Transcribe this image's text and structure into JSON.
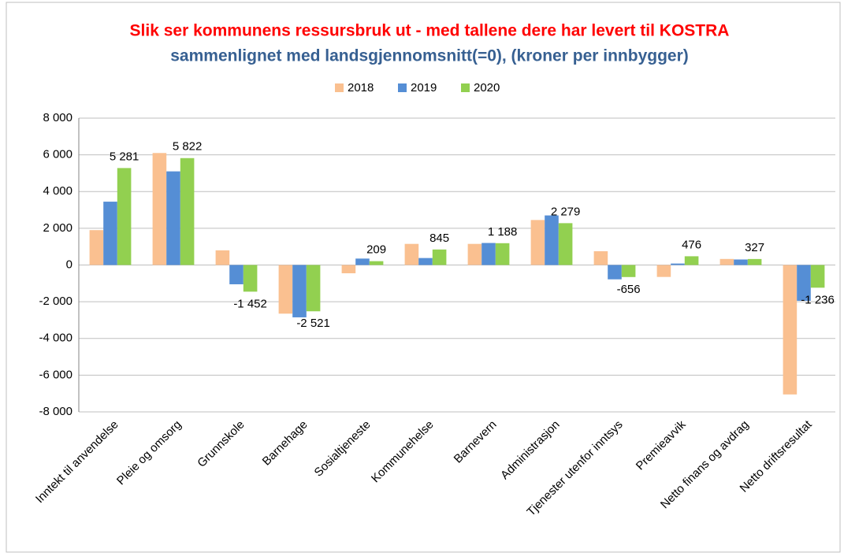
{
  "chart_data": {
    "type": "bar",
    "title": "Slik ser kommunens ressursbruk ut - med tallene dere har levert til KOSTRA",
    "subtitle": "sammenlignet med landsgjennomsnitt(=0), (kroner per innbygger)",
    "categories": [
      "Inntekt til anvendelse",
      "Pleie og omsorg",
      "Grunnskole",
      "Barnehage",
      "Sosialtjeneste",
      "Kommunehelse",
      "Barnevern",
      "Administrasjon",
      "Tjenester utenfor inntsys",
      "Premieavvik",
      "Netto finans og avdrag",
      "Netto driftsresultat"
    ],
    "series": [
      {
        "name": "2018",
        "color": "#fac090",
        "values": [
          1900,
          6100,
          800,
          -2650,
          -450,
          1150,
          1150,
          2450,
          750,
          -650,
          330,
          -7050
        ]
      },
      {
        "name": "2019",
        "color": "#558ed5",
        "values": [
          3450,
          5100,
          -1050,
          -2850,
          350,
          380,
          1200,
          2700,
          -780,
          80,
          300,
          -1950
        ]
      },
      {
        "name": "2020",
        "color": "#92d050",
        "values": [
          5281,
          5822,
          -1452,
          -2521,
          209,
          845,
          1188,
          2279,
          -656,
          476,
          327,
          -1236
        ],
        "value_labels": [
          "5 281",
          "5 822",
          "-1 452",
          "-2 521",
          "209",
          "845",
          "1 188",
          "2 279",
          "-656",
          "476",
          "327",
          "-1 236"
        ]
      }
    ],
    "ylim": [
      -8000,
      8000
    ],
    "yticks": [
      {
        "value": -8000,
        "label": "-8 000"
      },
      {
        "value": -6000,
        "label": "-6 000"
      },
      {
        "value": -4000,
        "label": "-4 000"
      },
      {
        "value": -2000,
        "label": "-2 000"
      },
      0,
      {
        "value": 2000,
        "label": "2 000"
      },
      {
        "value": 4000,
        "label": "4 000"
      },
      {
        "value": 6000,
        "label": "6 000"
      },
      {
        "value": 8000,
        "label": "8 000"
      }
    ],
    "grid": true,
    "legend": "top"
  }
}
